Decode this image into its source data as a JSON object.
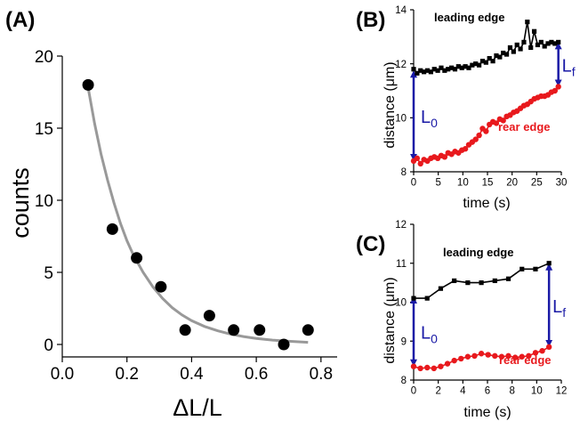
{
  "chart_data": [
    {
      "type": "scatter",
      "panel_label": "(A)",
      "xlabel": "ΔL/L",
      "ylabel": "counts",
      "xlim": [
        0.0,
        0.85
      ],
      "ylim": [
        0,
        20
      ],
      "xticks": [
        "0.0",
        "0.2",
        "0.4",
        "0.6",
        "0.8"
      ],
      "yticks": [
        "0",
        "5",
        "10",
        "15",
        "20"
      ],
      "points": {
        "x": [
          0.08,
          0.155,
          0.23,
          0.305,
          0.38,
          0.455,
          0.53,
          0.61,
          0.685,
          0.76
        ],
        "y": [
          18,
          8,
          6,
          4,
          1,
          2,
          1,
          1,
          0,
          1
        ]
      },
      "fit": {
        "x": [
          0.08,
          0.1,
          0.12,
          0.14,
          0.16,
          0.18,
          0.2,
          0.22,
          0.25,
          0.28,
          0.31,
          0.34,
          0.37,
          0.4,
          0.44,
          0.48,
          0.52,
          0.56,
          0.6,
          0.65,
          0.7,
          0.76
        ],
        "y": [
          17.8,
          15.3,
          13.2,
          11.4,
          9.8,
          8.4,
          7.2,
          6.2,
          5.0,
          4.0,
          3.2,
          2.55,
          2.05,
          1.65,
          1.25,
          0.95,
          0.72,
          0.55,
          0.42,
          0.3,
          0.22,
          0.15
        ]
      },
      "colors": {
        "points": "#000000",
        "fit": "#999999"
      }
    },
    {
      "type": "line",
      "panel_label": "(B)",
      "xlabel": "time (s)",
      "ylabel": "distance (μm)",
      "xlim": [
        0,
        30
      ],
      "ylim": [
        8,
        14
      ],
      "xticks": [
        "0",
        "5",
        "10",
        "15",
        "20",
        "25",
        "30"
      ],
      "yticks": [
        "8",
        "10",
        "12",
        "14"
      ],
      "series": [
        {
          "name": "leading edge",
          "color": "#000000",
          "marker": "square",
          "x": [
            0,
            0.7,
            1.4,
            2.1,
            2.8,
            3.5,
            4.2,
            4.9,
            5.6,
            6.3,
            7,
            7.7,
            8.4,
            9.1,
            9.8,
            10.5,
            11.2,
            11.9,
            12.6,
            13.3,
            14,
            14.7,
            15.4,
            16.1,
            16.8,
            17.5,
            18.2,
            18.9,
            19.6,
            20.3,
            21,
            21.7,
            22.4,
            23.1,
            23.8,
            24.5,
            25.2,
            25.9,
            26.6,
            27.3,
            28,
            28.7,
            29.4
          ],
          "y": [
            11.8,
            11.65,
            11.75,
            11.7,
            11.75,
            11.7,
            11.8,
            11.75,
            11.85,
            11.75,
            11.8,
            11.85,
            11.8,
            11.9,
            11.85,
            11.9,
            11.85,
            11.95,
            12.0,
            11.95,
            12.1,
            12.05,
            12.2,
            12.1,
            12.3,
            12.25,
            12.4,
            12.35,
            12.6,
            12.45,
            12.7,
            12.55,
            12.8,
            13.55,
            12.6,
            13.2,
            12.7,
            12.8,
            12.65,
            12.75,
            12.8,
            12.75,
            12.8
          ]
        },
        {
          "name": "rear edge",
          "color": "#e8191d",
          "marker": "circle",
          "x": [
            0,
            0.7,
            1.4,
            2.1,
            2.8,
            3.5,
            4.2,
            4.9,
            5.6,
            6.3,
            7,
            7.7,
            8.4,
            9.1,
            9.8,
            10.5,
            11.2,
            11.9,
            12.6,
            13.3,
            14,
            14.7,
            15.4,
            16.1,
            16.8,
            17.5,
            18.2,
            18.9,
            19.6,
            20.3,
            21,
            21.7,
            22.4,
            23.1,
            23.8,
            24.5,
            25.2,
            25.9,
            26.6,
            27.3,
            28,
            28.7,
            29.4
          ],
          "y": [
            8.4,
            8.5,
            8.3,
            8.45,
            8.4,
            8.5,
            8.55,
            8.5,
            8.6,
            8.55,
            8.7,
            8.65,
            8.75,
            8.7,
            8.8,
            8.85,
            9.0,
            9.1,
            9.2,
            9.35,
            9.6,
            9.5,
            9.75,
            9.85,
            9.8,
            9.95,
            9.9,
            10.05,
            10.1,
            10.2,
            10.25,
            10.35,
            10.45,
            10.5,
            10.6,
            10.7,
            10.75,
            10.8,
            10.8,
            10.85,
            10.95,
            11.0,
            11.15
          ]
        }
      ],
      "annotations": [
        {
          "text": "L",
          "sub": "0",
          "x": 0,
          "y1": 8.4,
          "y2": 11.75
        },
        {
          "text": "L",
          "sub": "f",
          "x": 29.4,
          "y1": 11.15,
          "y2": 12.8
        }
      ],
      "arrow_color": "#1a1aa6"
    },
    {
      "type": "line",
      "panel_label": "(C)",
      "xlabel": "time (s)",
      "ylabel": "distance (μm)",
      "xlim": [
        0,
        12
      ],
      "ylim": [
        8,
        12
      ],
      "xticks": [
        "0",
        "2",
        "4",
        "6",
        "8",
        "10",
        "12"
      ],
      "yticks": [
        "8",
        "9",
        "10",
        "11",
        "12"
      ],
      "series": [
        {
          "name": "leading edge",
          "color": "#000000",
          "marker": "square",
          "x": [
            0,
            1.1,
            2.2,
            3.3,
            4.4,
            5.5,
            6.6,
            7.7,
            8.8,
            9.9,
            11
          ],
          "y": [
            10.1,
            10.1,
            10.35,
            10.55,
            10.5,
            10.5,
            10.55,
            10.6,
            10.85,
            10.85,
            11.0
          ]
        },
        {
          "name": "rear edge",
          "color": "#e8191d",
          "marker": "circle",
          "x": [
            0,
            0.55,
            1.1,
            1.65,
            2.2,
            2.75,
            3.3,
            3.85,
            4.4,
            4.95,
            5.5,
            6.05,
            6.6,
            7.15,
            7.7,
            8.25,
            8.8,
            9.35,
            9.9,
            10.45,
            11
          ],
          "y": [
            8.35,
            8.3,
            8.32,
            8.3,
            8.35,
            8.42,
            8.5,
            8.55,
            8.6,
            8.62,
            8.68,
            8.65,
            8.62,
            8.6,
            8.62,
            8.58,
            8.6,
            8.62,
            8.7,
            8.75,
            8.85
          ]
        }
      ],
      "annotations": [
        {
          "text": "L",
          "sub": "0",
          "x": 0,
          "y1": 8.35,
          "y2": 10.15
        },
        {
          "text": "L",
          "sub": "f",
          "x": 11,
          "y1": 8.85,
          "y2": 11.0
        }
      ],
      "arrow_color": "#1a1aa6"
    }
  ]
}
